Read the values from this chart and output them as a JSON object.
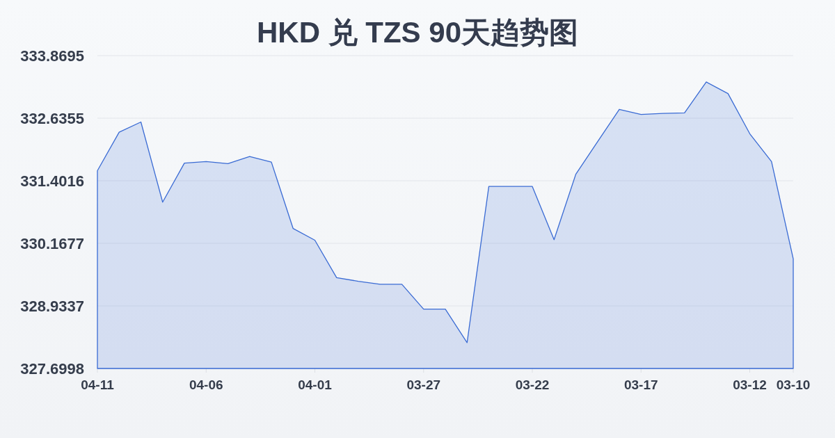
{
  "chart_data": {
    "type": "area",
    "title": "HKD 兑 TZS 90天趋势图",
    "categories": [
      "04-11",
      null,
      null,
      null,
      null,
      "04-06",
      null,
      null,
      null,
      null,
      "04-01",
      null,
      null,
      null,
      null,
      "03-27",
      null,
      null,
      null,
      null,
      "03-22",
      null,
      null,
      null,
      null,
      "03-17",
      null,
      null,
      null,
      null,
      "03-12",
      null,
      "03-10"
    ],
    "values": [
      331.6,
      332.36,
      332.56,
      330.98,
      331.75,
      331.78,
      331.74,
      331.88,
      331.77,
      330.46,
      330.23,
      329.49,
      329.42,
      329.36,
      329.36,
      328.87,
      328.87,
      328.21,
      331.29,
      331.29,
      331.29,
      330.24,
      331.53,
      332.17,
      332.81,
      332.71,
      332.73,
      332.74,
      333.35,
      333.12,
      332.33,
      331.78,
      329.86
    ],
    "color": "#3a6bd4",
    "ylim": [
      327.6998,
      333.8695
    ],
    "yticks": [
      327.6998,
      328.9337,
      330.1677,
      331.4016,
      332.6355,
      333.8695
    ],
    "grid": "y"
  }
}
